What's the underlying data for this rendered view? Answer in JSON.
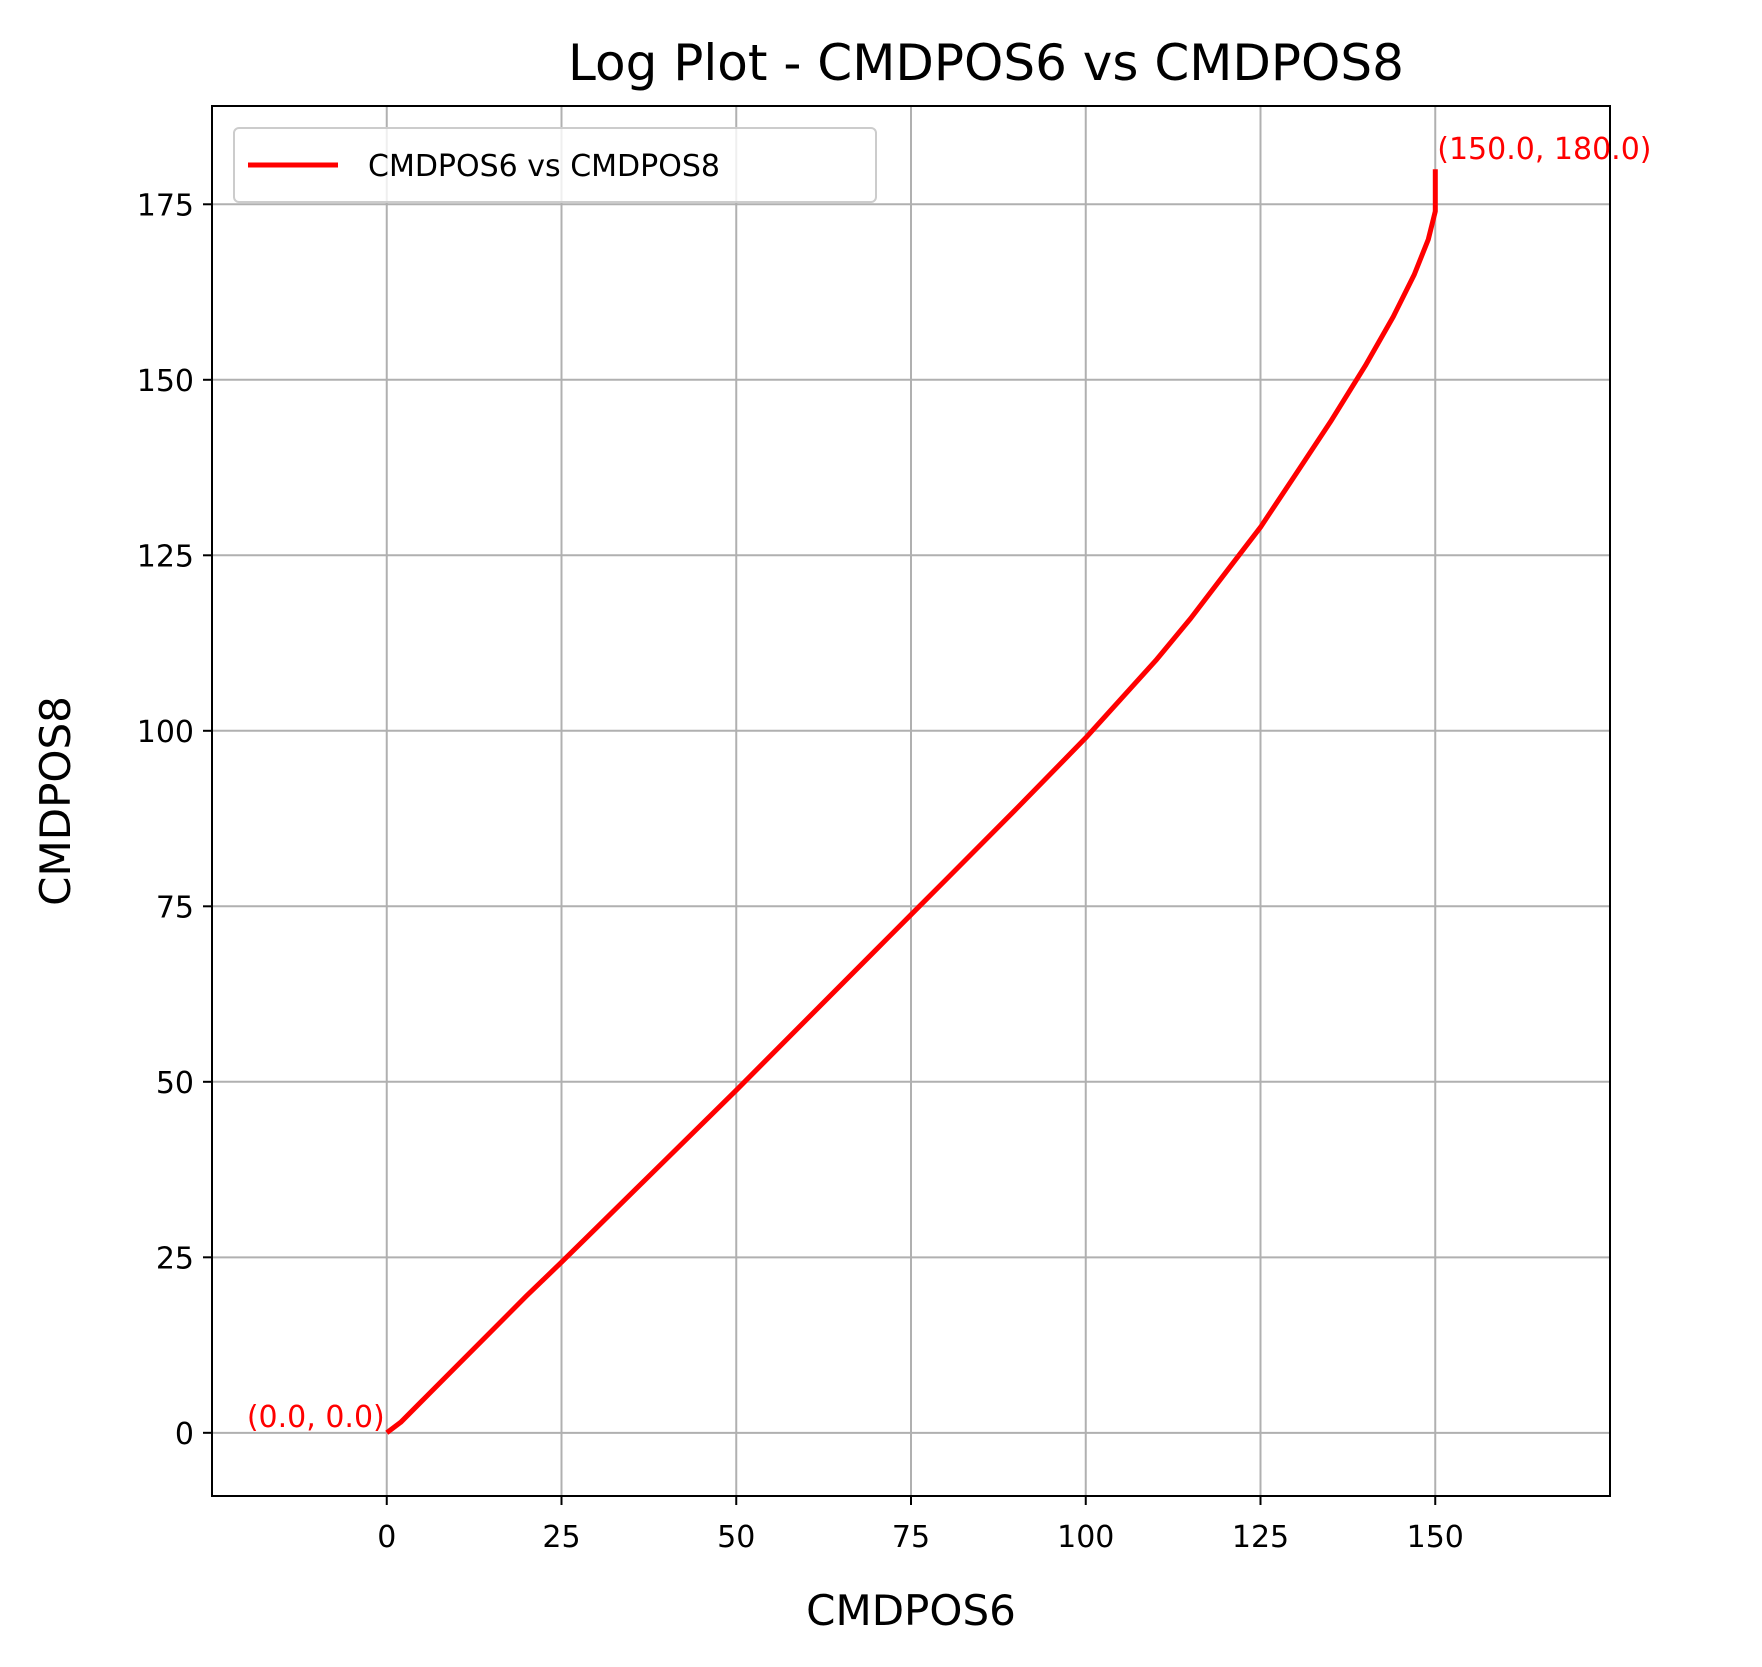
{
  "chart_data": {
    "type": "line",
    "title": "Log Plot - CMDPOS6 vs CMDPOS8",
    "xlabel": "CMDPOS6",
    "ylabel": "CMDPOS8",
    "xlim": [
      -25,
      175
    ],
    "ylim": [
      -9,
      189
    ],
    "xticks": [
      0,
      25,
      50,
      75,
      100,
      125,
      150
    ],
    "yticks": [
      0,
      25,
      50,
      75,
      100,
      125,
      150,
      175
    ],
    "grid": true,
    "legend_position": "top-left",
    "series": [
      {
        "name": "CMDPOS6 vs CMDPOS8",
        "color": "#ff0000",
        "x": [
          0,
          2,
          5,
          10,
          15,
          20,
          25,
          30,
          40,
          50,
          60,
          70,
          75,
          80,
          90,
          100,
          110,
          115,
          120,
          125,
          130,
          135,
          140,
          144,
          147,
          149,
          150,
          150,
          150
        ],
        "y": [
          0,
          1.5,
          4.5,
          9.5,
          14.5,
          19.5,
          24.3,
          29.2,
          39,
          48.8,
          58.8,
          68.8,
          73.8,
          78.8,
          88.8,
          99,
          110,
          116,
          122.5,
          129,
          136.5,
          144,
          152,
          159,
          165,
          170,
          174,
          178,
          180
        ]
      }
    ],
    "annotations": [
      {
        "text": "(0.0, 0.0)",
        "x": 0,
        "y": 0,
        "color": "#ff0000",
        "align": "right"
      },
      {
        "text": "(150.0, 180.0)",
        "x": 150,
        "y": 180,
        "color": "#ff0000",
        "align": "left"
      }
    ]
  }
}
